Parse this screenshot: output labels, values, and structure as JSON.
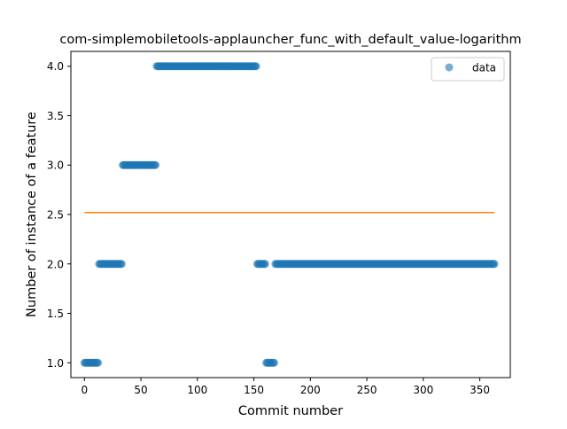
{
  "chart_data": {
    "type": "scatter",
    "title": "com-simplemobiletools-applauncher_func_with_default_value-logarithm",
    "xlabel": "Commit number",
    "ylabel": "Number of instance of a feature",
    "xlim": [
      -12,
      377
    ],
    "ylim": [
      0.85,
      4.15
    ],
    "xticks": [
      0,
      50,
      100,
      150,
      200,
      250,
      300,
      350
    ],
    "yticks": [
      1.0,
      1.5,
      2.0,
      2.5,
      3.0,
      3.5,
      4.0
    ],
    "xtick_labels": [
      "0",
      "50",
      "100",
      "150",
      "200",
      "250",
      "300",
      "350"
    ],
    "ytick_labels": [
      "1.0",
      "1.5",
      "2.0",
      "2.5",
      "3.0",
      "3.5",
      "4.0"
    ],
    "legend_placement": "top-right",
    "series": [
      {
        "name": "data",
        "kind": "scatter",
        "color": "#1f77b4",
        "segments": [
          {
            "x_start": 0,
            "x_end": 12,
            "y": 1.0
          },
          {
            "x_start": 13,
            "x_end": 33,
            "y": 2.0
          },
          {
            "x_start": 34,
            "x_end": 63,
            "y": 3.0
          },
          {
            "x_start": 64,
            "x_end": 152,
            "y": 4.0
          },
          {
            "x_start": 153,
            "x_end": 160,
            "y": 2.0
          },
          {
            "x_start": 161,
            "x_end": 168,
            "y": 1.0
          },
          {
            "x_start": 169,
            "x_end": 363,
            "y": 2.0
          }
        ]
      },
      {
        "kind": "line",
        "color": "#ff7f0e",
        "x": [
          0,
          363
        ],
        "y": [
          2.52,
          2.52
        ]
      }
    ]
  }
}
